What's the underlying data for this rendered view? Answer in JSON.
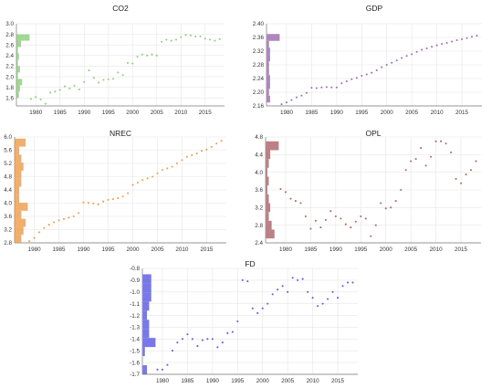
{
  "chart_data": [
    {
      "type": "scatter",
      "title": "CO2",
      "color": "#8fd07f",
      "xlim": [
        1976,
        2019
      ],
      "ylim": [
        1.45,
        3.0
      ],
      "xticks": [
        1980,
        1985,
        1990,
        1995,
        2000,
        2005,
        2010,
        2015
      ],
      "xtick_labels": [
        "1980",
        "1985",
        "1990",
        "1995",
        "2000",
        "2005",
        "2010",
        "2015"
      ],
      "yticks": [
        1.6,
        1.8,
        2.0,
        2.2,
        2.4,
        2.6,
        2.8,
        3.0
      ],
      "ytick_labels": [
        "1.6",
        "1.8",
        "2.0",
        "2.2",
        "2.4",
        "2.6",
        "2.8",
        "3.0"
      ],
      "x": [
        1979,
        1980,
        1981,
        1982,
        1983,
        1984,
        1985,
        1986,
        1987,
        1988,
        1989,
        1990,
        1991,
        1992,
        1993,
        1994,
        1995,
        1996,
        1997,
        1998,
        1999,
        2000,
        2001,
        2002,
        2003,
        2004,
        2005,
        2006,
        2007,
        2008,
        2009,
        2010,
        2011,
        2012,
        2013,
        2014,
        2015,
        2016,
        2017,
        2018
      ],
      "y": [
        1.58,
        1.62,
        1.57,
        1.49,
        1.7,
        1.72,
        1.75,
        1.82,
        1.78,
        1.83,
        1.76,
        1.9,
        2.12,
        1.98,
        1.89,
        1.94,
        1.95,
        1.96,
        2.08,
        2.03,
        2.26,
        2.25,
        2.38,
        2.42,
        2.4,
        2.42,
        2.4,
        2.66,
        2.7,
        2.68,
        2.7,
        2.75,
        2.79,
        2.78,
        2.76,
        2.76,
        2.72,
        2.7,
        2.68,
        2.71
      ],
      "hist_range": [
        1.6,
        2.8
      ],
      "hist_counts": [
        2,
        3,
        5,
        1,
        3,
        1,
        2,
        1,
        4,
        12
      ]
    },
    {
      "type": "scatter",
      "title": "GDP",
      "color": "#a070b0",
      "xlim": [
        1976,
        2019
      ],
      "ylim": [
        2.16,
        2.4
      ],
      "xticks": [
        1980,
        1985,
        1990,
        1995,
        2000,
        2005,
        2010,
        2015
      ],
      "xtick_labels": [
        "1980",
        "1985",
        "1990",
        "1995",
        "2000",
        "2005",
        "2010",
        "2015"
      ],
      "yticks": [
        2.16,
        2.2,
        2.24,
        2.28,
        2.32,
        2.36,
        2.4
      ],
      "ytick_labels": [
        "2.16",
        "2.20",
        "2.24",
        "2.28",
        "2.32",
        "2.36",
        "2.40"
      ],
      "x": [
        1979,
        1980,
        1981,
        1982,
        1983,
        1984,
        1985,
        1986,
        1987,
        1988,
        1989,
        1990,
        1991,
        1992,
        1993,
        1994,
        1995,
        1996,
        1997,
        1998,
        1999,
        2000,
        2001,
        2002,
        2003,
        2004,
        2005,
        2006,
        2007,
        2008,
        2009,
        2010,
        2011,
        2012,
        2013,
        2014,
        2015,
        2016,
        2017,
        2018
      ],
      "y": [
        2.165,
        2.17,
        2.177,
        2.185,
        2.19,
        2.198,
        2.213,
        2.212,
        2.214,
        2.215,
        2.214,
        2.214,
        2.226,
        2.232,
        2.238,
        2.242,
        2.248,
        2.252,
        2.257,
        2.264,
        2.273,
        2.28,
        2.286,
        2.293,
        2.3,
        2.306,
        2.311,
        2.318,
        2.324,
        2.328,
        2.333,
        2.337,
        2.341,
        2.344,
        2.348,
        2.352,
        2.355,
        2.358,
        2.362,
        2.365
      ],
      "hist_range": [
        2.17,
        2.37
      ],
      "hist_counts": [
        3,
        2,
        3,
        3,
        2,
        2,
        3,
        3,
        2,
        12
      ]
    },
    {
      "type": "scatter",
      "title": "NREC",
      "color": "#f0a050",
      "xlim": [
        1976,
        2019
      ],
      "ylim": [
        2.8,
        6.0
      ],
      "xticks": [
        1980,
        1985,
        1990,
        1995,
        2000,
        2005,
        2010,
        2015
      ],
      "xtick_labels": [
        "1980",
        "1985",
        "1990",
        "1995",
        "2000",
        "2005",
        "2010",
        "2015"
      ],
      "yticks": [
        2.8,
        3.2,
        3.6,
        4.0,
        4.4,
        4.8,
        5.2,
        5.6,
        6.0
      ],
      "ytick_labels": [
        "2.8",
        "3.2",
        "3.6",
        "4.0",
        "4.4",
        "4.8",
        "5.2",
        "5.6",
        "6.0"
      ],
      "x": [
        1979,
        1980,
        1981,
        1982,
        1983,
        1984,
        1985,
        1986,
        1987,
        1988,
        1989,
        1990,
        1991,
        1992,
        1993,
        1994,
        1995,
        1996,
        1997,
        1998,
        1999,
        2000,
        2001,
        2002,
        2003,
        2004,
        2005,
        2006,
        2007,
        2008,
        2009,
        2010,
        2011,
        2012,
        2013,
        2014,
        2015,
        2016,
        2017,
        2018
      ],
      "y": [
        2.85,
        2.95,
        3.12,
        3.25,
        3.35,
        3.42,
        3.48,
        3.52,
        3.56,
        3.6,
        3.7,
        4.02,
        4.01,
        3.99,
        3.96,
        4.05,
        4.1,
        4.12,
        4.15,
        4.2,
        4.3,
        4.55,
        4.62,
        4.7,
        4.75,
        4.8,
        4.9,
        5.0,
        5.05,
        5.1,
        5.2,
        5.3,
        5.4,
        5.45,
        5.5,
        5.58,
        5.62,
        5.7,
        5.8,
        5.88
      ],
      "hist_range": [
        2.8,
        5.95
      ],
      "hist_counts": [
        3,
        4,
        5,
        3,
        6,
        2,
        2,
        3,
        3,
        4,
        3,
        2,
        5
      ]
    },
    {
      "type": "scatter",
      "title": "OPL",
      "color": "#b06a70",
      "xlim": [
        1976,
        2019
      ],
      "ylim": [
        2.4,
        4.8
      ],
      "xticks": [
        1980,
        1985,
        1990,
        1995,
        2000,
        2005,
        2010,
        2015
      ],
      "xtick_labels": [
        "1980",
        "1985",
        "1990",
        "1995",
        "2000",
        "2005",
        "2010",
        "2015"
      ],
      "yticks": [
        2.4,
        2.8,
        3.2,
        3.6,
        4.0,
        4.4,
        4.8
      ],
      "ytick_labels": [
        "2.4",
        "2.8",
        "3.2",
        "3.6",
        "4.0",
        "4.4",
        "4.8"
      ],
      "x": [
        1979,
        1980,
        1981,
        1982,
        1983,
        1984,
        1985,
        1986,
        1987,
        1988,
        1989,
        1990,
        1991,
        1992,
        1993,
        1994,
        1995,
        1996,
        1997,
        1998,
        1999,
        2000,
        2001,
        2002,
        2003,
        2004,
        2005,
        2006,
        2007,
        2008,
        2009,
        2010,
        2011,
        2012,
        2013,
        2014,
        2015,
        2016,
        2017,
        2018
      ],
      "y": [
        3.62,
        3.55,
        3.4,
        3.35,
        3.3,
        3.0,
        2.72,
        2.9,
        2.75,
        2.92,
        3.12,
        3.0,
        2.95,
        2.82,
        2.75,
        2.88,
        3.0,
        2.95,
        2.55,
        2.8,
        3.3,
        3.18,
        3.2,
        3.35,
        3.6,
        4.05,
        4.25,
        4.3,
        4.55,
        4.15,
        4.35,
        4.7,
        4.7,
        4.65,
        4.45,
        3.85,
        3.75,
        3.95,
        4.05,
        4.25
      ],
      "hist_range": [
        2.5,
        4.7
      ],
      "hist_counts": [
        6,
        4,
        2,
        3,
        2,
        1,
        2,
        1,
        2,
        3,
        9
      ]
    },
    {
      "type": "scatter",
      "title": "FD",
      "color": "#6060e8",
      "xlim": [
        1976,
        2019
      ],
      "ylim": [
        -1.7,
        -0.8
      ],
      "xticks": [
        1980,
        1985,
        1990,
        1995,
        2000,
        2005,
        2010,
        2015
      ],
      "xtick_labels": [
        "1980",
        "1985",
        "1990",
        "1995",
        "2000",
        "2005",
        "2010",
        "2015"
      ],
      "yticks": [
        -1.7,
        -1.6,
        -1.5,
        -1.4,
        -1.3,
        -1.2,
        -1.1,
        -1.0,
        -0.9,
        -0.8
      ],
      "ytick_labels": [
        "-1.7",
        "-1.6",
        "-1.5",
        "-1.4",
        "-1.3",
        "-1.2",
        "-1.1",
        "-1.0",
        "-0.9",
        "-0.8"
      ],
      "x": [
        1979,
        1980,
        1981,
        1982,
        1983,
        1984,
        1985,
        1986,
        1987,
        1988,
        1989,
        1990,
        1991,
        1992,
        1993,
        1994,
        1995,
        1996,
        1997,
        1998,
        1999,
        2000,
        2001,
        2002,
        2003,
        2004,
        2005,
        2006,
        2007,
        2008,
        2009,
        2010,
        2011,
        2012,
        2013,
        2014,
        2015,
        2016,
        2017,
        2018
      ],
      "y": [
        -1.66,
        -1.66,
        -1.62,
        -1.5,
        -1.43,
        -1.4,
        -1.36,
        -1.4,
        -1.46,
        -1.41,
        -1.4,
        -1.4,
        -1.47,
        -1.43,
        -1.35,
        -1.34,
        -1.25,
        -0.9,
        -0.91,
        -1.14,
        -1.18,
        -1.14,
        -1.1,
        -1.02,
        -0.98,
        -0.95,
        -1.0,
        -0.88,
        -0.9,
        -0.89,
        -1.0,
        -1.05,
        -1.12,
        -1.1,
        -1.06,
        -1.0,
        -1.05,
        -0.95,
        -0.92,
        -0.92
      ],
      "hist_range": [
        -1.7,
        -0.85
      ],
      "hist_counts": [
        2,
        0,
        1,
        6,
        3,
        3,
        2,
        3,
        4,
        4,
        4
      ]
    }
  ]
}
